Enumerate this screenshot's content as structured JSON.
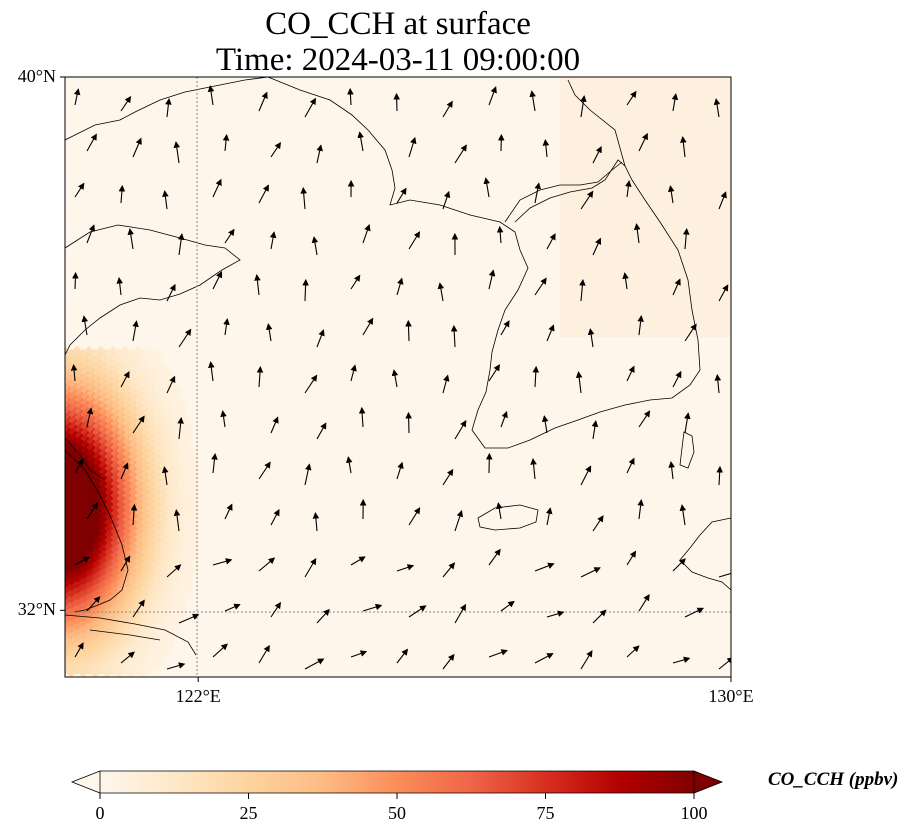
{
  "title_line1": "CO_CCH at surface",
  "title_line2": "Time: 2024-03-11 09:00:00",
  "map": {
    "lon_min": 120.0,
    "lon_max": 130.0,
    "lat_min": 31.0,
    "lat_max": 40.0,
    "lat_ticks": [
      {
        "value": 40,
        "label": "40°N"
      },
      {
        "value": 32,
        "label": "32°N"
      }
    ],
    "lon_ticks": [
      {
        "value": 122,
        "label": "122°E"
      },
      {
        "value": 130,
        "label": "130°E"
      }
    ],
    "gridlines": [
      {
        "type": "lon",
        "value": 122
      },
      {
        "type": "lat",
        "value": 32
      }
    ],
    "background_value": 2,
    "plume_peak_value": 100,
    "wind_field": "winds mostly from south / southwest"
  },
  "colorbar": {
    "label": "CO_CCH (ppbv)",
    "min": 0,
    "max": 100,
    "ticks": [
      0,
      25,
      50,
      75,
      100
    ],
    "colormap": "OrRd",
    "extend": "both",
    "stops": [
      "#fff7ec",
      "#fee8c8",
      "#fdd49e",
      "#fdbb84",
      "#fc8d59",
      "#ef6548",
      "#d7301f",
      "#b30000",
      "#7f0000"
    ]
  }
}
